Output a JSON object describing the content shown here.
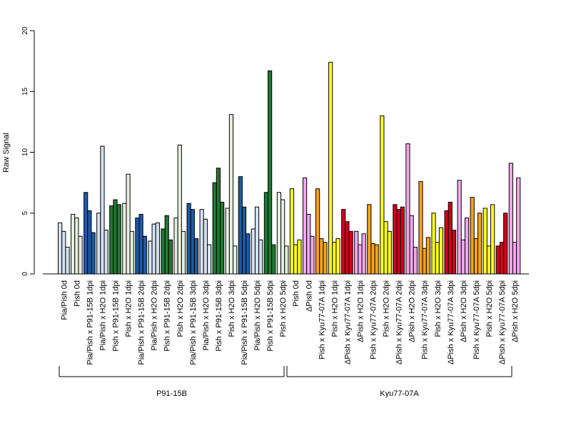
{
  "chart_data": {
    "type": "bar",
    "ylabel": "Raw Signal",
    "xlabel": "",
    "ylim": [
      0,
      20
    ],
    "yticks": [
      0,
      5,
      10,
      15,
      20
    ],
    "categories": [
      "Pia/Pish 0d",
      "Pish 0d",
      "Pia/Pish x P91-15B 1dpi",
      "Pia/Pish x H2O 1dpi",
      "Pish x P91-15B 1dpi",
      "Pish x H2O 1dpi",
      "Pia/Pish x P91-15B 2dpi",
      "Pia/Pish x H2O 2dpi",
      "Pish x P91-15B 2dpi",
      "Pish x H2O 2dpi",
      "Pia/Pish x P91-15B 3dpi",
      "Pia/Pish x H2O 3dpi",
      "Pish x P91-15B 3dpi",
      "Pish x H2O 3dpi",
      "Pia/Pish x P91-15B 5dpi",
      "Pia/Pish x H2O 5dpi",
      "Pish x P91-15B 5dpi",
      "Pish x H2O 5dpi",
      "Pish 0d",
      "ΔPish 0d",
      "Pish x Kyu77-07A 1dpi",
      "Pish x H2O 1dpi",
      "ΔPish x Kyu77-07A 1dpi",
      "ΔPish x H2O 1dpi",
      "Pish x Kyu77-07A 2dpi",
      "Pish x H2O 2dpi",
      "ΔPish x Kyu77-07A 2dpi",
      "ΔPish x H2O 2dpi",
      "Pish x Kyu77-07A 3dpi",
      "Pish x H2O 3dpi",
      "ΔPish x Kyu77-07A 3dpi",
      "ΔPish x H2O 3dpi",
      "Pish x Kyu77-07A 5dpi",
      "Pish x H2O 5dpi",
      "ΔPish x Kyu77-07A 5dpi",
      "ΔPish x H2O 5dpi"
    ],
    "bar_colors": [
      "#d4e1f2",
      "#e6f0e0",
      "#1f5aa6",
      "#d4e1f2",
      "#1e7a32",
      "#e6f0e0",
      "#1f5aa6",
      "#d4e1f2",
      "#1e7a32",
      "#e6f0e0",
      "#1f5aa6",
      "#d4e1f2",
      "#1e7a32",
      "#e6f0e0",
      "#1f5aa6",
      "#d4e1f2",
      "#1e7a32",
      "#e6f0e0",
      "#ffff22",
      "#f4a6ee",
      "#f5a31a",
      "#ffff22",
      "#d0021b",
      "#f4a6ee",
      "#f5a31a",
      "#ffff22",
      "#d0021b",
      "#f4a6ee",
      "#f5a31a",
      "#ffff22",
      "#d0021b",
      "#f4a6ee",
      "#f5a31a",
      "#ffff22",
      "#d0021b",
      "#f4a6ee"
    ],
    "values": [
      [
        4.2,
        3.5,
        2.2
      ],
      [
        4.9,
        4.6,
        3.1
      ],
      [
        6.7,
        5.2,
        3.4
      ],
      [
        5.0,
        10.5,
        3.6
      ],
      [
        5.6,
        6.1,
        5.7
      ],
      [
        5.8,
        8.2,
        3.5
      ],
      [
        4.6,
        4.9,
        3.1
      ],
      [
        2.7,
        4.1,
        4.2
      ],
      [
        3.7,
        4.8,
        2.8
      ],
      [
        4.6,
        10.6,
        3.5
      ],
      [
        5.8,
        5.3,
        2.9
      ],
      [
        5.3,
        4.5,
        2.4
      ],
      [
        7.5,
        8.7,
        5.9
      ],
      [
        5.4,
        13.1,
        2.3
      ],
      [
        8.0,
        5.5,
        3.3
      ],
      [
        3.7,
        5.5,
        2.8
      ],
      [
        6.7,
        16.7,
        2.4
      ],
      [
        6.7,
        6.1,
        2.3
      ],
      [
        7.0,
        2.4,
        2.8
      ],
      [
        7.9,
        4.9,
        3.1
      ],
      [
        7.0,
        2.9,
        2.6
      ],
      [
        17.4,
        2.6,
        2.9
      ],
      [
        5.3,
        4.3,
        3.5
      ],
      [
        3.5,
        2.4,
        3.3
      ],
      [
        5.7,
        2.5,
        2.4
      ],
      [
        13.0,
        4.3,
        3.5
      ],
      [
        5.7,
        5.3,
        5.5
      ],
      [
        10.7,
        4.8,
        2.2
      ],
      [
        7.6,
        2.1,
        3.0
      ],
      [
        5.0,
        2.6,
        3.8
      ],
      [
        5.2,
        5.9,
        3.6
      ],
      [
        7.7,
        2.8,
        4.6
      ],
      [
        6.3,
        2.9,
        5.0
      ],
      [
        5.4,
        2.3,
        5.7
      ],
      [
        2.3,
        2.6,
        5.0
      ],
      [
        9.1,
        2.6,
        7.9
      ]
    ],
    "groups": [
      {
        "label": "P91-15B",
        "from": 0,
        "to": 17
      },
      {
        "label": "Kyu77-07A",
        "from": 18,
        "to": 35
      }
    ],
    "grid": false,
    "legend": "none"
  }
}
